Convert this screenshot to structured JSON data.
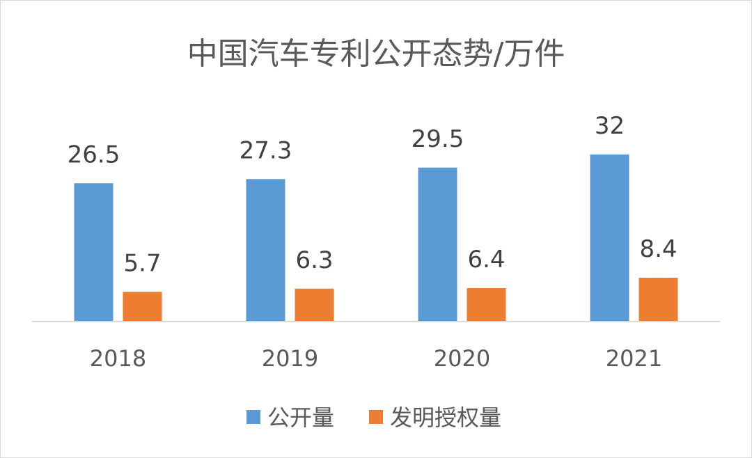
{
  "chart_data": {
    "type": "bar",
    "title": "中国汽车专利公开态势/万件",
    "categories": [
      "2018",
      "2019",
      "2020",
      "2021"
    ],
    "series": [
      {
        "name": "公开量",
        "color": "#5b9bd5",
        "values": [
          26.5,
          27.3,
          29.5,
          32
        ],
        "labels": [
          "26.5",
          "27.3",
          "29.5",
          "32"
        ]
      },
      {
        "name": "发明授权量",
        "color": "#ed7d31",
        "values": [
          5.7,
          6.3,
          6.4,
          8.4
        ],
        "labels": [
          "5.7",
          "6.3",
          "6.4",
          "8.4"
        ]
      }
    ],
    "ylim": [
      0,
      40
    ],
    "xlabel": "",
    "ylabel": "",
    "grid": false,
    "legend_position": "bottom",
    "data_labels": true
  }
}
